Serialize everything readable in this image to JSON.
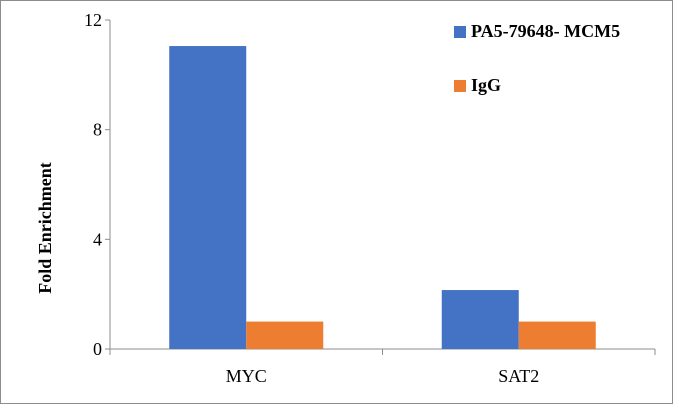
{
  "chart_data": {
    "type": "bar",
    "categories": [
      "MYC",
      "SAT2"
    ],
    "series": [
      {
        "name": "PA5-79648- MCM5",
        "values": [
          11.05,
          2.15
        ],
        "color": "#4472C4"
      },
      {
        "name": "IgG",
        "values": [
          1.0,
          1.0
        ],
        "color": "#ED7D31"
      }
    ],
    "xlabel": "",
    "ylabel": "Fold Enrichment",
    "ylim": [
      0,
      12
    ],
    "yticks": [
      0,
      4,
      8,
      12
    ],
    "grid": false,
    "legend_position": "top-right"
  }
}
